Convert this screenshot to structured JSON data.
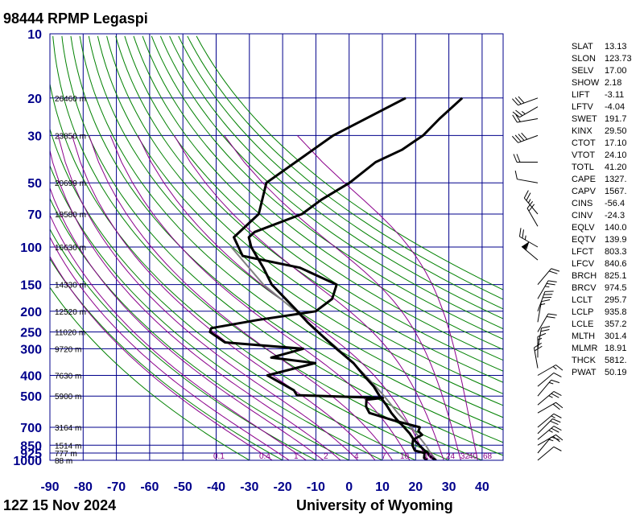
{
  "header": {
    "station_title": "98444 RPMP Legaspi"
  },
  "footer": {
    "time_label": "12Z 15 Nov 2024",
    "source_label": "University of Wyoming"
  },
  "chart_data": {
    "type": "skew-t",
    "pressure_ticks": [
      10,
      20,
      30,
      50,
      70,
      100,
      150,
      200,
      250,
      300,
      400,
      500,
      700,
      850,
      925,
      1000
    ],
    "pressure_tick_labels": [
      "10",
      "20",
      "30",
      "50",
      "70",
      "100",
      "150",
      "200",
      "250",
      "300",
      "400",
      "500",
      "700",
      "850",
      "925",
      "1000"
    ],
    "temperature_ticks": [
      -90,
      -80,
      -70,
      -60,
      -50,
      -40,
      -30,
      -20,
      -10,
      0,
      10,
      20,
      30,
      40
    ],
    "temperature_tick_labels": [
      "-90",
      "-80",
      "-70",
      "-60",
      "-50",
      "-40",
      "-30",
      "-20",
      "-10",
      "0",
      "10",
      "20",
      "30",
      "40"
    ],
    "height_labels": [
      {
        "p": 20,
        "label": "26460 m"
      },
      {
        "p": 30,
        "label": "23850 m"
      },
      {
        "p": 50,
        "label": "20699 m"
      },
      {
        "p": 70,
        "label": "18580 m"
      },
      {
        "p": 100,
        "label": "16630 m"
      },
      {
        "p": 150,
        "label": "14330 m"
      },
      {
        "p": 200,
        "label": "12520 m"
      },
      {
        "p": 250,
        "label": "11020 m"
      },
      {
        "p": 300,
        "label": "9720 m"
      },
      {
        "p": 400,
        "label": "7630 m"
      },
      {
        "p": 500,
        "label": "5900 m"
      },
      {
        "p": 700,
        "label": "3164 m"
      },
      {
        "p": 850,
        "label": "1514 m"
      },
      {
        "p": 925,
        "label": "777 m"
      },
      {
        "p": 1000,
        "label": "88 m"
      }
    ],
    "mixing_ratio_labels": [
      "0.1",
      "0.4",
      "1",
      "2",
      "4",
      "7",
      "10",
      "16",
      "24",
      "32",
      "40",
      "68"
    ],
    "temperature_profile": [
      [
        1000,
        26.2
      ],
      [
        975,
        24.4
      ],
      [
        950,
        23.0
      ],
      [
        925,
        22.0
      ],
      [
        900,
        20.4
      ],
      [
        850,
        17.6
      ],
      [
        800,
        14.6
      ],
      [
        750,
        12.0
      ],
      [
        700,
        8.8
      ],
      [
        650,
        5.2
      ],
      [
        600,
        1.6
      ],
      [
        550,
        -1.8
      ],
      [
        500,
        -5.9
      ],
      [
        450,
        -10.0
      ],
      [
        400,
        -15.5
      ],
      [
        350,
        -21.5
      ],
      [
        300,
        -30.0
      ],
      [
        250,
        -39.5
      ],
      [
        225,
        -45.0
      ],
      [
        200,
        -50.5
      ],
      [
        175,
        -57.0
      ],
      [
        150,
        -64.5
      ],
      [
        125,
        -71.0
      ],
      [
        100,
        -79.5
      ],
      [
        90,
        -82.5
      ],
      [
        85,
        -82.0
      ],
      [
        70,
        -72.0
      ],
      [
        60,
        -69.5
      ],
      [
        50,
        -65.0
      ],
      [
        40,
        -62.0
      ],
      [
        35,
        -57.0
      ],
      [
        30,
        -54.0
      ],
      [
        25,
        -53.0
      ],
      [
        20,
        -51.0
      ]
    ],
    "dewpoint_profile": [
      [
        1000,
        23.5
      ],
      [
        975,
        22.0
      ],
      [
        950,
        21.5
      ],
      [
        925,
        21.0
      ],
      [
        900,
        17.5
      ],
      [
        850,
        15.5
      ],
      [
        800,
        14.4
      ],
      [
        760,
        16.0
      ],
      [
        730,
        14.0
      ],
      [
        700,
        13.5
      ],
      [
        650,
        4.0
      ],
      [
        600,
        -5.0
      ],
      [
        560,
        -7.5
      ],
      [
        520,
        -9.0
      ],
      [
        510,
        -4.5
      ],
      [
        495,
        -31.0
      ],
      [
        470,
        -33.0
      ],
      [
        420,
        -41.0
      ],
      [
        400,
        -44.5
      ],
      [
        350,
        -33.0
      ],
      [
        330,
        -47.5
      ],
      [
        300,
        -40.0
      ],
      [
        280,
        -65.0
      ],
      [
        250,
        -72.0
      ],
      [
        240,
        -72.5
      ],
      [
        220,
        -60.5
      ],
      [
        200,
        -45.0
      ],
      [
        175,
        -43.0
      ],
      [
        150,
        -45.0
      ],
      [
        125,
        -60.0
      ],
      [
        110,
        -80.0
      ],
      [
        90,
        -87.0
      ],
      [
        70,
        -85.0
      ],
      [
        50,
        -90.0
      ],
      [
        30,
        -81.0
      ],
      [
        20,
        -68.0
      ]
    ],
    "parcel_profile": [
      [
        1000,
        26.2
      ],
      [
        925,
        22.8
      ],
      [
        850,
        19.5
      ],
      [
        700,
        11.0
      ],
      [
        600,
        3.5
      ],
      [
        500,
        -4.5
      ],
      [
        400,
        -15.0
      ],
      [
        300,
        -29.5
      ],
      [
        250,
        -39.5
      ],
      [
        200,
        -51.0
      ],
      [
        150,
        -67.0
      ],
      [
        100,
        -85.5
      ]
    ],
    "indices": [
      {
        "name": "SLAT",
        "value": "13.13"
      },
      {
        "name": "SLON",
        "value": "123.73"
      },
      {
        "name": "SELV",
        "value": "17.00"
      },
      {
        "name": "SHOW",
        "value": "2.18"
      },
      {
        "name": "LIFT",
        "value": "-3.11"
      },
      {
        "name": "LFTV",
        "value": "-4.04"
      },
      {
        "name": "SWET",
        "value": "191.7"
      },
      {
        "name": "KINX",
        "value": "29.50"
      },
      {
        "name": "CTOT",
        "value": "17.10"
      },
      {
        "name": "VTOT",
        "value": "24.10"
      },
      {
        "name": "TOTL",
        "value": "41.20"
      },
      {
        "name": "CAPE",
        "value": "1327."
      },
      {
        "name": "CAPV",
        "value": "1567."
      },
      {
        "name": "CINS",
        "value": "-56.4"
      },
      {
        "name": "CINV",
        "value": "-24.3"
      },
      {
        "name": "EQLV",
        "value": "140.0"
      },
      {
        "name": "EQTV",
        "value": "139.9"
      },
      {
        "name": "LFCT",
        "value": "803.3"
      },
      {
        "name": "LFCV",
        "value": "840.6"
      },
      {
        "name": "BRCH",
        "value": "825.1"
      },
      {
        "name": "BRCV",
        "value": "974.5"
      },
      {
        "name": "LCLT",
        "value": "295.7"
      },
      {
        "name": "LCLP",
        "value": "935.8"
      },
      {
        "name": "LCLE",
        "value": "357.2"
      },
      {
        "name": "MLTH",
        "value": "301.4"
      },
      {
        "name": "MLMR",
        "value": "18.91"
      },
      {
        "name": "THCK",
        "value": "5812."
      },
      {
        "name": "PWAT",
        "value": "50.19"
      }
    ],
    "wind_barbs": [
      {
        "p": 20,
        "dir": 250,
        "spd": 30
      },
      {
        "p": 22,
        "dir": 240,
        "spd": 25
      },
      {
        "p": 25,
        "dir": 260,
        "spd": 20
      },
      {
        "p": 30,
        "dir": 250,
        "spd": 40
      },
      {
        "p": 40,
        "dir": 270,
        "spd": 20
      },
      {
        "p": 50,
        "dir": 280,
        "spd": 10
      },
      {
        "p": 70,
        "dir": 320,
        "spd": 25
      },
      {
        "p": 80,
        "dir": 330,
        "spd": 20
      },
      {
        "p": 100,
        "dir": 300,
        "spd": 25
      },
      {
        "p": 115,
        "dir": 310,
        "spd": 60
      },
      {
        "p": 150,
        "dir": 40,
        "spd": 20
      },
      {
        "p": 175,
        "dir": 30,
        "spd": 25
      },
      {
        "p": 200,
        "dir": 20,
        "spd": 30
      },
      {
        "p": 225,
        "dir": 10,
        "spd": 15
      },
      {
        "p": 250,
        "dir": 30,
        "spd": 20
      },
      {
        "p": 300,
        "dir": 10,
        "spd": 20
      },
      {
        "p": 330,
        "dir": 360,
        "spd": 15
      },
      {
        "p": 370,
        "dir": 350,
        "spd": 20
      },
      {
        "p": 400,
        "dir": 60,
        "spd": 15
      },
      {
        "p": 450,
        "dir": 50,
        "spd": 10
      },
      {
        "p": 500,
        "dir": 40,
        "spd": 15
      },
      {
        "p": 550,
        "dir": 50,
        "spd": 25
      },
      {
        "p": 600,
        "dir": 60,
        "spd": 20
      },
      {
        "p": 700,
        "dir": 50,
        "spd": 15
      },
      {
        "p": 750,
        "dir": 45,
        "spd": 20
      },
      {
        "p": 800,
        "dir": 50,
        "spd": 25
      },
      {
        "p": 850,
        "dir": 60,
        "spd": 20
      },
      {
        "p": 925,
        "dir": 40,
        "spd": 15
      },
      {
        "p": 1000,
        "dir": 50,
        "spd": 10
      }
    ],
    "colors": {
      "grid": "#00008b",
      "dry_adiabat": "#008000",
      "moist_adiabat": "#8b008b",
      "profile": "#000000",
      "parcel": "#808080",
      "axis_text": "#00008b"
    }
  }
}
